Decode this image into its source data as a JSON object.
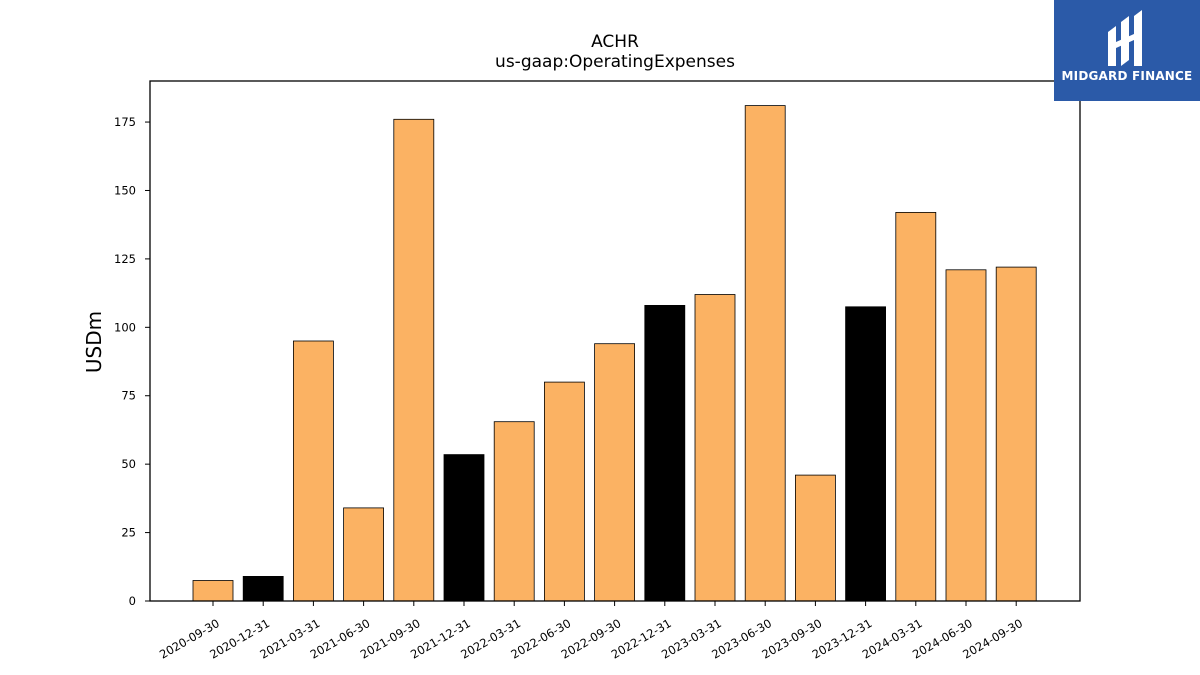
{
  "title": "ACHR",
  "subtitle": "us-gaap:OperatingExpenses",
  "brand": {
    "name": "MIDGARD FINANCE",
    "color": "#2b5aa8"
  },
  "colors": {
    "default": "#fbb263",
    "highlight": "#000000"
  },
  "chart_data": {
    "type": "bar",
    "title": "ACHR",
    "subtitle": "us-gaap:OperatingExpenses",
    "xlabel": "",
    "ylabel": "USDm",
    "ylim": [
      0,
      190
    ],
    "yticks": [
      0,
      25,
      50,
      75,
      100,
      125,
      150,
      175
    ],
    "grid": false,
    "categories": [
      "2020-09-30",
      "2020-12-31",
      "2021-03-31",
      "2021-06-30",
      "2021-09-30",
      "2021-12-31",
      "2022-03-31",
      "2022-06-30",
      "2022-09-30",
      "2022-12-31",
      "2023-03-31",
      "2023-06-30",
      "2023-09-30",
      "2023-12-31",
      "2024-03-31",
      "2024-06-30",
      "2024-09-30"
    ],
    "values": [
      7.5,
      9,
      95,
      34,
      176,
      53.5,
      65.5,
      80,
      94,
      108,
      112,
      181,
      46,
      107.5,
      142,
      121,
      122
    ],
    "highlighted": [
      false,
      true,
      false,
      false,
      false,
      true,
      false,
      false,
      false,
      true,
      false,
      false,
      false,
      true,
      false,
      false,
      false
    ]
  }
}
